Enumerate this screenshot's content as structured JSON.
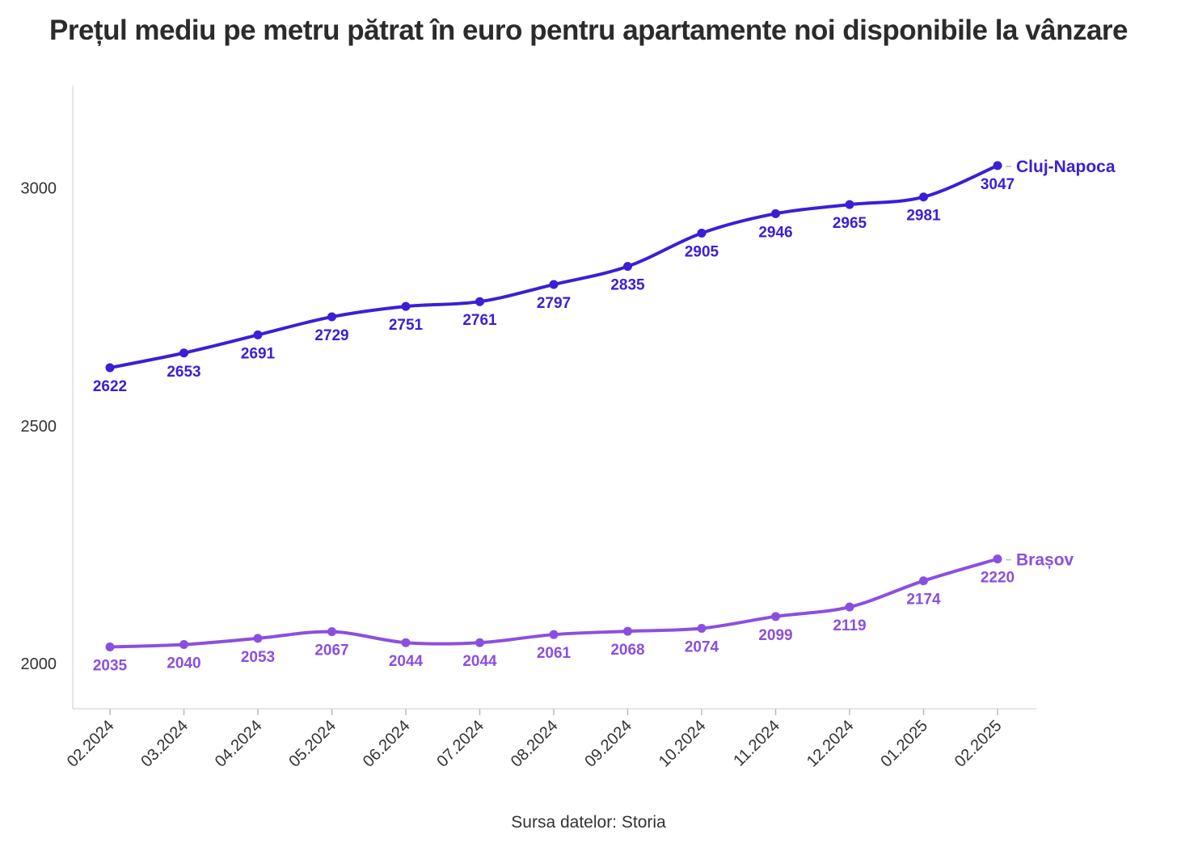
{
  "chart_data": {
    "type": "line",
    "title": "Prețul mediu pe metru pătrat în euro pentru apartamente noi disponibile la vânzare",
    "caption": "Sursa datelor: Storia",
    "x": [
      "02.2024",
      "03.2024",
      "04.2024",
      "05.2024",
      "06.2024",
      "07.2024",
      "08.2024",
      "09.2024",
      "10.2024",
      "11.2024",
      "12.2024",
      "01.2025",
      "02.2025"
    ],
    "yticks": [
      2000,
      2500,
      3000
    ],
    "ylim": [
      1905,
      3215
    ],
    "grid": false,
    "series": [
      {
        "name": "Cluj-Napoca",
        "color": "#3b1fd6",
        "values": [
          2622,
          2653,
          2691,
          2729,
          2751,
          2761,
          2797,
          2835,
          2905,
          2946,
          2965,
          2981,
          3047
        ]
      },
      {
        "name": "Brașov",
        "color": "#8b4fe0",
        "values": [
          2035,
          2040,
          2053,
          2067,
          2044,
          2044,
          2061,
          2068,
          2074,
          2099,
          2119,
          2174,
          2220
        ]
      }
    ]
  }
}
